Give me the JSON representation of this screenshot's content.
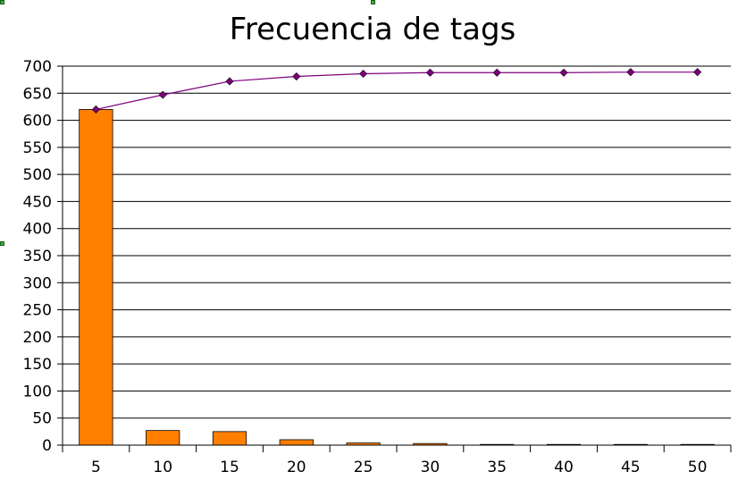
{
  "chart_data": {
    "type": "bar",
    "title": "Frecuencia de tags",
    "categories": [
      "5",
      "10",
      "15",
      "20",
      "25",
      "30",
      "35",
      "40",
      "45",
      "50"
    ],
    "ylim": [
      0,
      700
    ],
    "yticks": [
      "0",
      "50",
      "100",
      "150",
      "200",
      "250",
      "300",
      "350",
      "400",
      "450",
      "500",
      "550",
      "600",
      "650",
      "700"
    ],
    "grid": true,
    "legend": "none",
    "series": [
      {
        "type": "bar",
        "color": "#ff7f00",
        "values": [
          620,
          27,
          25,
          10,
          4,
          3,
          1,
          1,
          0,
          1
        ]
      },
      {
        "type": "line",
        "color": "#7f007f",
        "marker": "diamond",
        "values": [
          620,
          647,
          672,
          681,
          686,
          688,
          688,
          688,
          689,
          689
        ]
      }
    ]
  }
}
